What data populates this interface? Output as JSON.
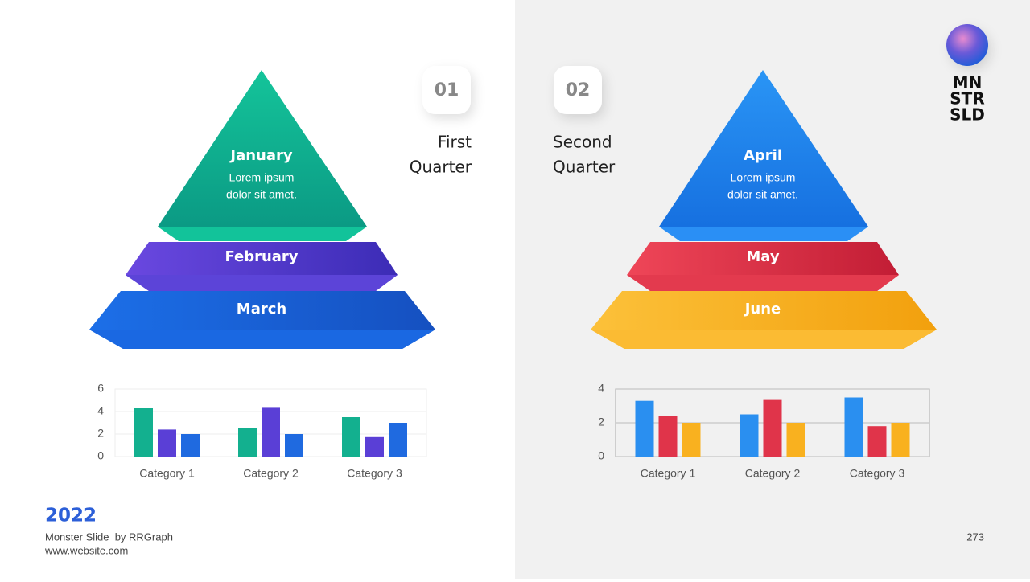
{
  "pyramids": [
    {
      "number": "01",
      "title_lines": [
        "First",
        "Quarter"
      ],
      "levels": [
        {
          "label": "January",
          "text_lines": [
            "Lorem ipsum",
            "dolor sit amet."
          ]
        },
        {
          "label": "February"
        },
        {
          "label": "March"
        }
      ]
    },
    {
      "number": "02",
      "title_lines": [
        "Second",
        "Quarter"
      ],
      "levels": [
        {
          "label": "April",
          "text_lines": [
            "Lorem ipsum",
            "dolor sit amet."
          ]
        },
        {
          "label": "May"
        },
        {
          "label": "June"
        }
      ]
    }
  ],
  "chart_data": [
    {
      "type": "bar",
      "categories": [
        "Category 1",
        "Category 2",
        "Category 3"
      ],
      "series": [
        {
          "color": "#13b08f",
          "values": [
            4.3,
            2.5,
            3.5
          ]
        },
        {
          "color": "#5a3fd6",
          "values": [
            2.4,
            4.4,
            1.8
          ]
        },
        {
          "color": "#1f6ae0",
          "values": [
            2.0,
            2.0,
            3.0
          ]
        }
      ],
      "ylim": [
        0,
        6
      ],
      "yticks": [
        0,
        2,
        4,
        6
      ],
      "grid": true
    },
    {
      "type": "bar",
      "categories": [
        "Category 1",
        "Category 2",
        "Category 3"
      ],
      "series": [
        {
          "color": "#2a8ff0",
          "values": [
            3.3,
            2.5,
            3.5
          ]
        },
        {
          "color": "#e0344a",
          "values": [
            2.4,
            3.4,
            1.8
          ]
        },
        {
          "color": "#f9b11f",
          "values": [
            2.0,
            2.0,
            2.0
          ]
        }
      ],
      "ylim": [
        0,
        4
      ],
      "yticks": [
        0,
        2,
        4
      ],
      "grid": true
    }
  ],
  "logo": [
    "MN",
    "STR",
    "SLD"
  ],
  "footer": {
    "year": "2022",
    "credit": "Monster Slide  by RRGraph",
    "website": "www.website.com",
    "page": "273"
  }
}
